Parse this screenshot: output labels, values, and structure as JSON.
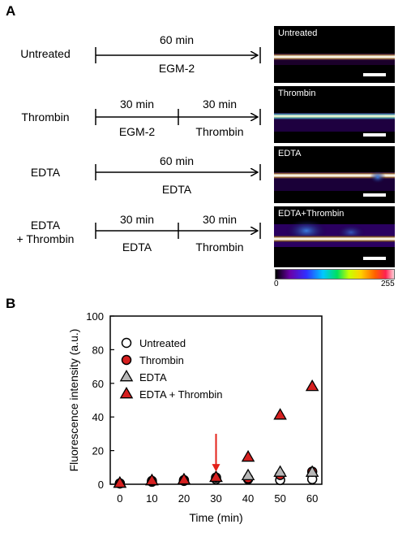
{
  "panel_a": {
    "letter": "A",
    "conditions": [
      {
        "label": "Untreated",
        "segments": [
          {
            "duration": "60 min",
            "medium": "EGM-2"
          }
        ],
        "image_label": "Untreated"
      },
      {
        "label": "Thrombin",
        "segments": [
          {
            "duration": "30 min",
            "medium": "EGM-2"
          },
          {
            "duration": "30 min",
            "medium": "Thrombin"
          }
        ],
        "image_label": "Thrombin"
      },
      {
        "label": "EDTA",
        "segments": [
          {
            "duration": "60 min",
            "medium": "EDTA"
          }
        ],
        "image_label": "EDTA"
      },
      {
        "label_lines": [
          "EDTA",
          "+ Thrombin"
        ],
        "segments": [
          {
            "duration": "30 min",
            "medium": "EDTA"
          },
          {
            "duration": "30 min",
            "medium": "Thrombin"
          }
        ],
        "image_label": "EDTA+Thrombin"
      }
    ],
    "colorbar": {
      "min": "0",
      "max": "255"
    }
  },
  "panel_b": {
    "letter": "B"
  },
  "chart_data": {
    "type": "scatter",
    "xlabel": "Time (min)",
    "ylabel": "Fluorescence intensity (a.u.)",
    "xlim": [
      -3,
      63
    ],
    "ylim": [
      0,
      100
    ],
    "x_ticks": [
      0,
      10,
      20,
      30,
      40,
      50,
      60
    ],
    "y_ticks": [
      0,
      20,
      40,
      60,
      80,
      100
    ],
    "x": [
      0,
      10,
      20,
      30,
      40,
      50,
      60
    ],
    "legend_position": "top-left",
    "annotation": {
      "type": "arrow",
      "x": 30,
      "color": "#e32119"
    },
    "series": [
      {
        "name": "Untreated",
        "marker": "circle",
        "fill": "#ffffff",
        "values": [
          0.5,
          1.5,
          2,
          3,
          3,
          2.5,
          3
        ]
      },
      {
        "name": "Thrombin",
        "marker": "circle",
        "fill": "#d62020",
        "values": [
          0.5,
          2,
          2.5,
          4,
          3.5,
          5.5,
          7.5
        ]
      },
      {
        "name": "EDTA",
        "marker": "triangle",
        "fill": "#b7b7b7",
        "values": [
          0.5,
          2,
          2.5,
          4,
          5,
          7,
          7
        ]
      },
      {
        "name": "EDTA + Thrombin",
        "marker": "triangle",
        "fill": "#d62020",
        "values": [
          0.5,
          2,
          2.5,
          4,
          16,
          41,
          58
        ]
      }
    ]
  }
}
